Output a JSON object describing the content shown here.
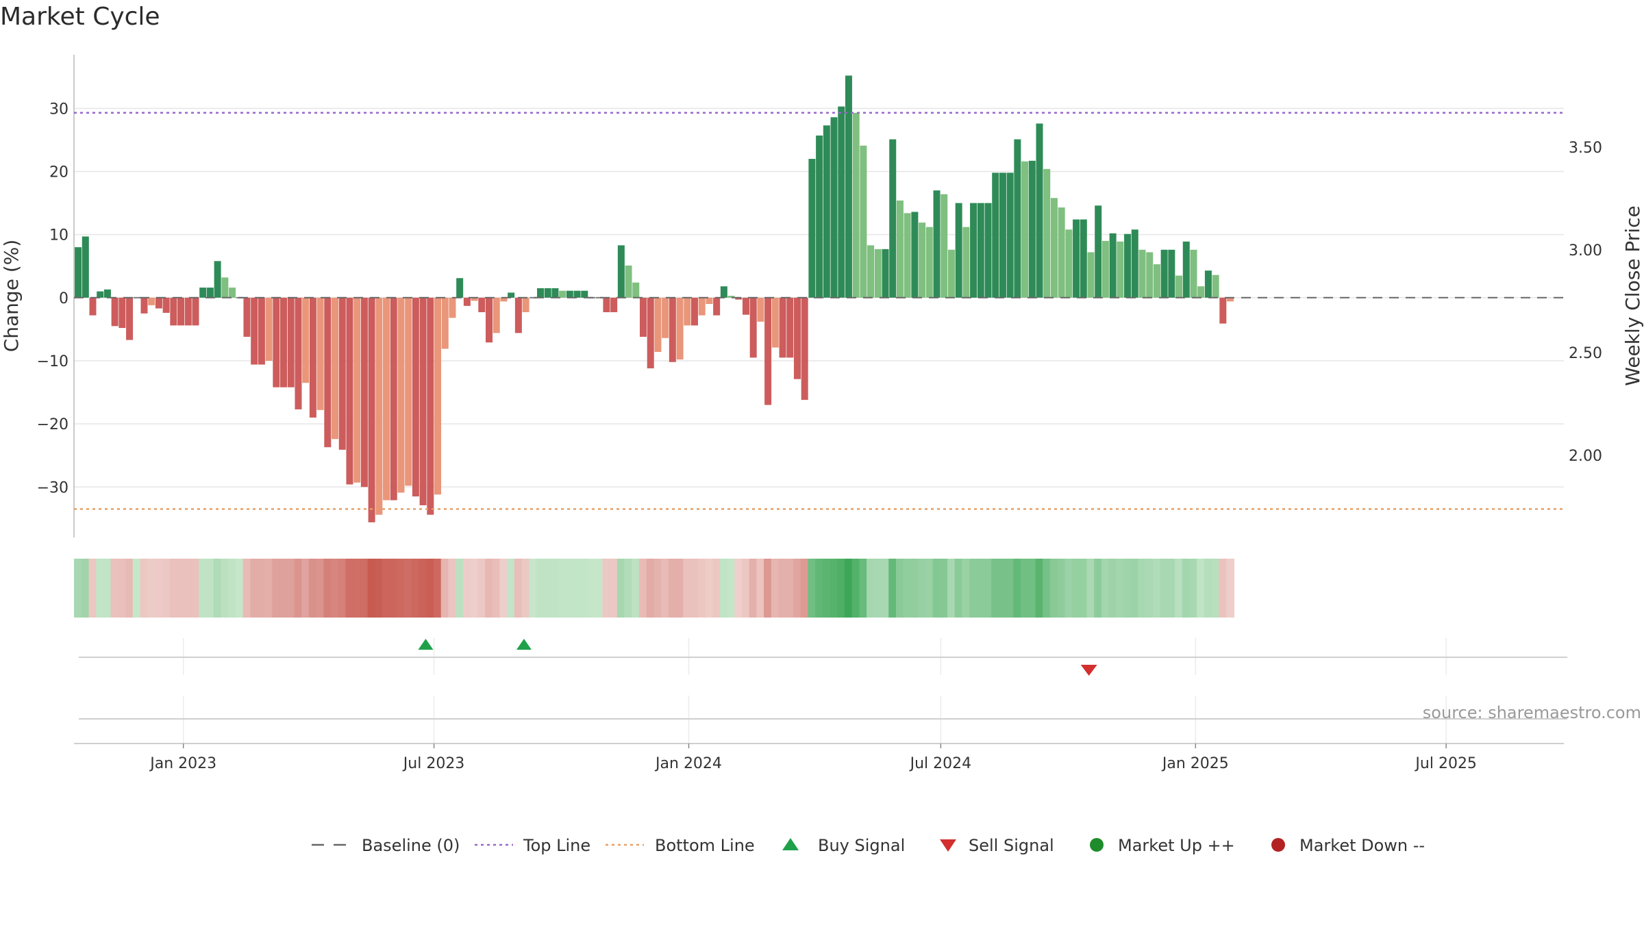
{
  "colors": {
    "up_strong": "#2e8b57",
    "up_light": "#7fbf7f",
    "down_strong": "#cd5c5c",
    "down_light": "#e9967a",
    "top_line": "#9966cc",
    "bottom_line": "#e69f66",
    "baseline": "#666666",
    "buy": "#1fa14a",
    "sell": "#d32f2f",
    "market_up": "#1e8c2a",
    "market_down": "#b22222"
  },
  "chart_data": {
    "type": "bar",
    "title": "Market Cycle",
    "ylabel": "Change (%)",
    "y2label": "Weekly Close Price",
    "source": "source: sharemaestro.com",
    "ylim": [
      -38.0,
      38.5
    ],
    "y2lim": [
      1.6,
      3.95
    ],
    "yticks": [
      30,
      20,
      10,
      0,
      -10,
      -20,
      -30
    ],
    "yticklabels": [
      "30",
      "20",
      "10",
      "0",
      "−10",
      "−20",
      "−30"
    ],
    "y2ticks": [
      3.5,
      3.0,
      2.5,
      2.0
    ],
    "y2ticklabels": [
      "3.50",
      "3.00",
      "2.50",
      "2.00"
    ],
    "top_line": 29.3,
    "bottom_line": -33.5,
    "x_start": "2022-10-14",
    "x_end": "2025-09-24",
    "xticks": [
      "2023-01-01",
      "2023-07-01",
      "2024-01-01",
      "2024-07-01",
      "2025-01-01",
      "2025-07-01"
    ],
    "xticklabels": [
      "Jan 2023",
      "Jul 2023",
      "Jan 2024",
      "Jul 2024",
      "Jan 2025",
      "Jul 2025"
    ],
    "first_bar_date": "2022-10-17",
    "bar_interval_days": 5.3,
    "values": [
      8,
      9.7,
      -2.8,
      1,
      1.3,
      -4.5,
      -4.8,
      -6.7,
      0,
      -2.5,
      -1.2,
      -1.7,
      -2.4,
      -4.4,
      -4.4,
      -4.4,
      -4.4,
      1.6,
      1.6,
      5.8,
      3.2,
      1.6,
      0,
      -6.2,
      -10.6,
      -10.6,
      -10,
      -14.2,
      -14.2,
      -14.2,
      -17.7,
      -13.5,
      -19,
      -17.8,
      -23.7,
      -22.4,
      -24.1,
      -29.6,
      -29.3,
      -30,
      -35.6,
      -34.4,
      -32.1,
      -32.1,
      -30.9,
      -29.8,
      -31.5,
      -32.9,
      -34.4,
      -31.2,
      -8.1,
      -3.2,
      3.1,
      -1.3,
      -0.5,
      -2.3,
      -7.1,
      -5.6,
      -0.6,
      0.8,
      -5.6,
      -2.3,
      0,
      1.5,
      1.5,
      1.5,
      1.1,
      1.1,
      1.1,
      1.1,
      0,
      0,
      -2.3,
      -2.3,
      8.3,
      5.1,
      2.4,
      -6.2,
      -11.2,
      -8.6,
      -6.4,
      -10.2,
      -9.8,
      -4.4,
      -4.4,
      -2.8,
      -1,
      -2.8,
      1.8,
      0.3,
      -0.3,
      -2.7,
      -9.5,
      -3.8,
      -17,
      -7.9,
      -9.5,
      -9.5,
      -12.9,
      -16.2,
      22,
      25.7,
      27.3,
      28.6,
      30.3,
      35.2,
      29.3,
      24.1,
      8.3,
      7.7,
      7.7,
      25.1,
      15.4,
      13.4,
      13.6,
      11.9,
      11.2,
      17,
      16.4,
      7.6,
      15,
      11.2,
      15,
      15,
      15,
      19.8,
      19.8,
      19.8,
      25.1,
      21.6,
      21.7,
      27.6,
      20.4,
      15.8,
      14.3,
      10.8,
      12.4,
      12.4,
      7.2,
      14.6,
      9,
      10.2,
      8.9,
      10.1,
      10.8,
      7.6,
      7.2,
      5.3,
      7.6,
      7.6,
      3.5,
      8.9,
      7.6,
      1.8,
      4.3,
      3.6,
      -4.1,
      -0.6
    ],
    "buy_signals": [
      {
        "x": "2023-06-25",
        "y": 0
      },
      {
        "x": "2023-09-04",
        "y": 0
      }
    ],
    "sell_signals": [
      {
        "x": "2024-10-16",
        "y": 0
      }
    ],
    "legend_position": "bottom-center",
    "legend": [
      {
        "label": "Baseline (0)",
        "kind": "dash"
      },
      {
        "label": "Top Line",
        "kind": "dot-top"
      },
      {
        "label": "Bottom Line",
        "kind": "dot-bottom"
      },
      {
        "label": "Buy Signal",
        "kind": "tri-up"
      },
      {
        "label": "Sell Signal",
        "kind": "tri-down"
      },
      {
        "label": "Market Up ++",
        "kind": "circle-up"
      },
      {
        "label": "Market Down --",
        "kind": "circle-down"
      }
    ]
  }
}
